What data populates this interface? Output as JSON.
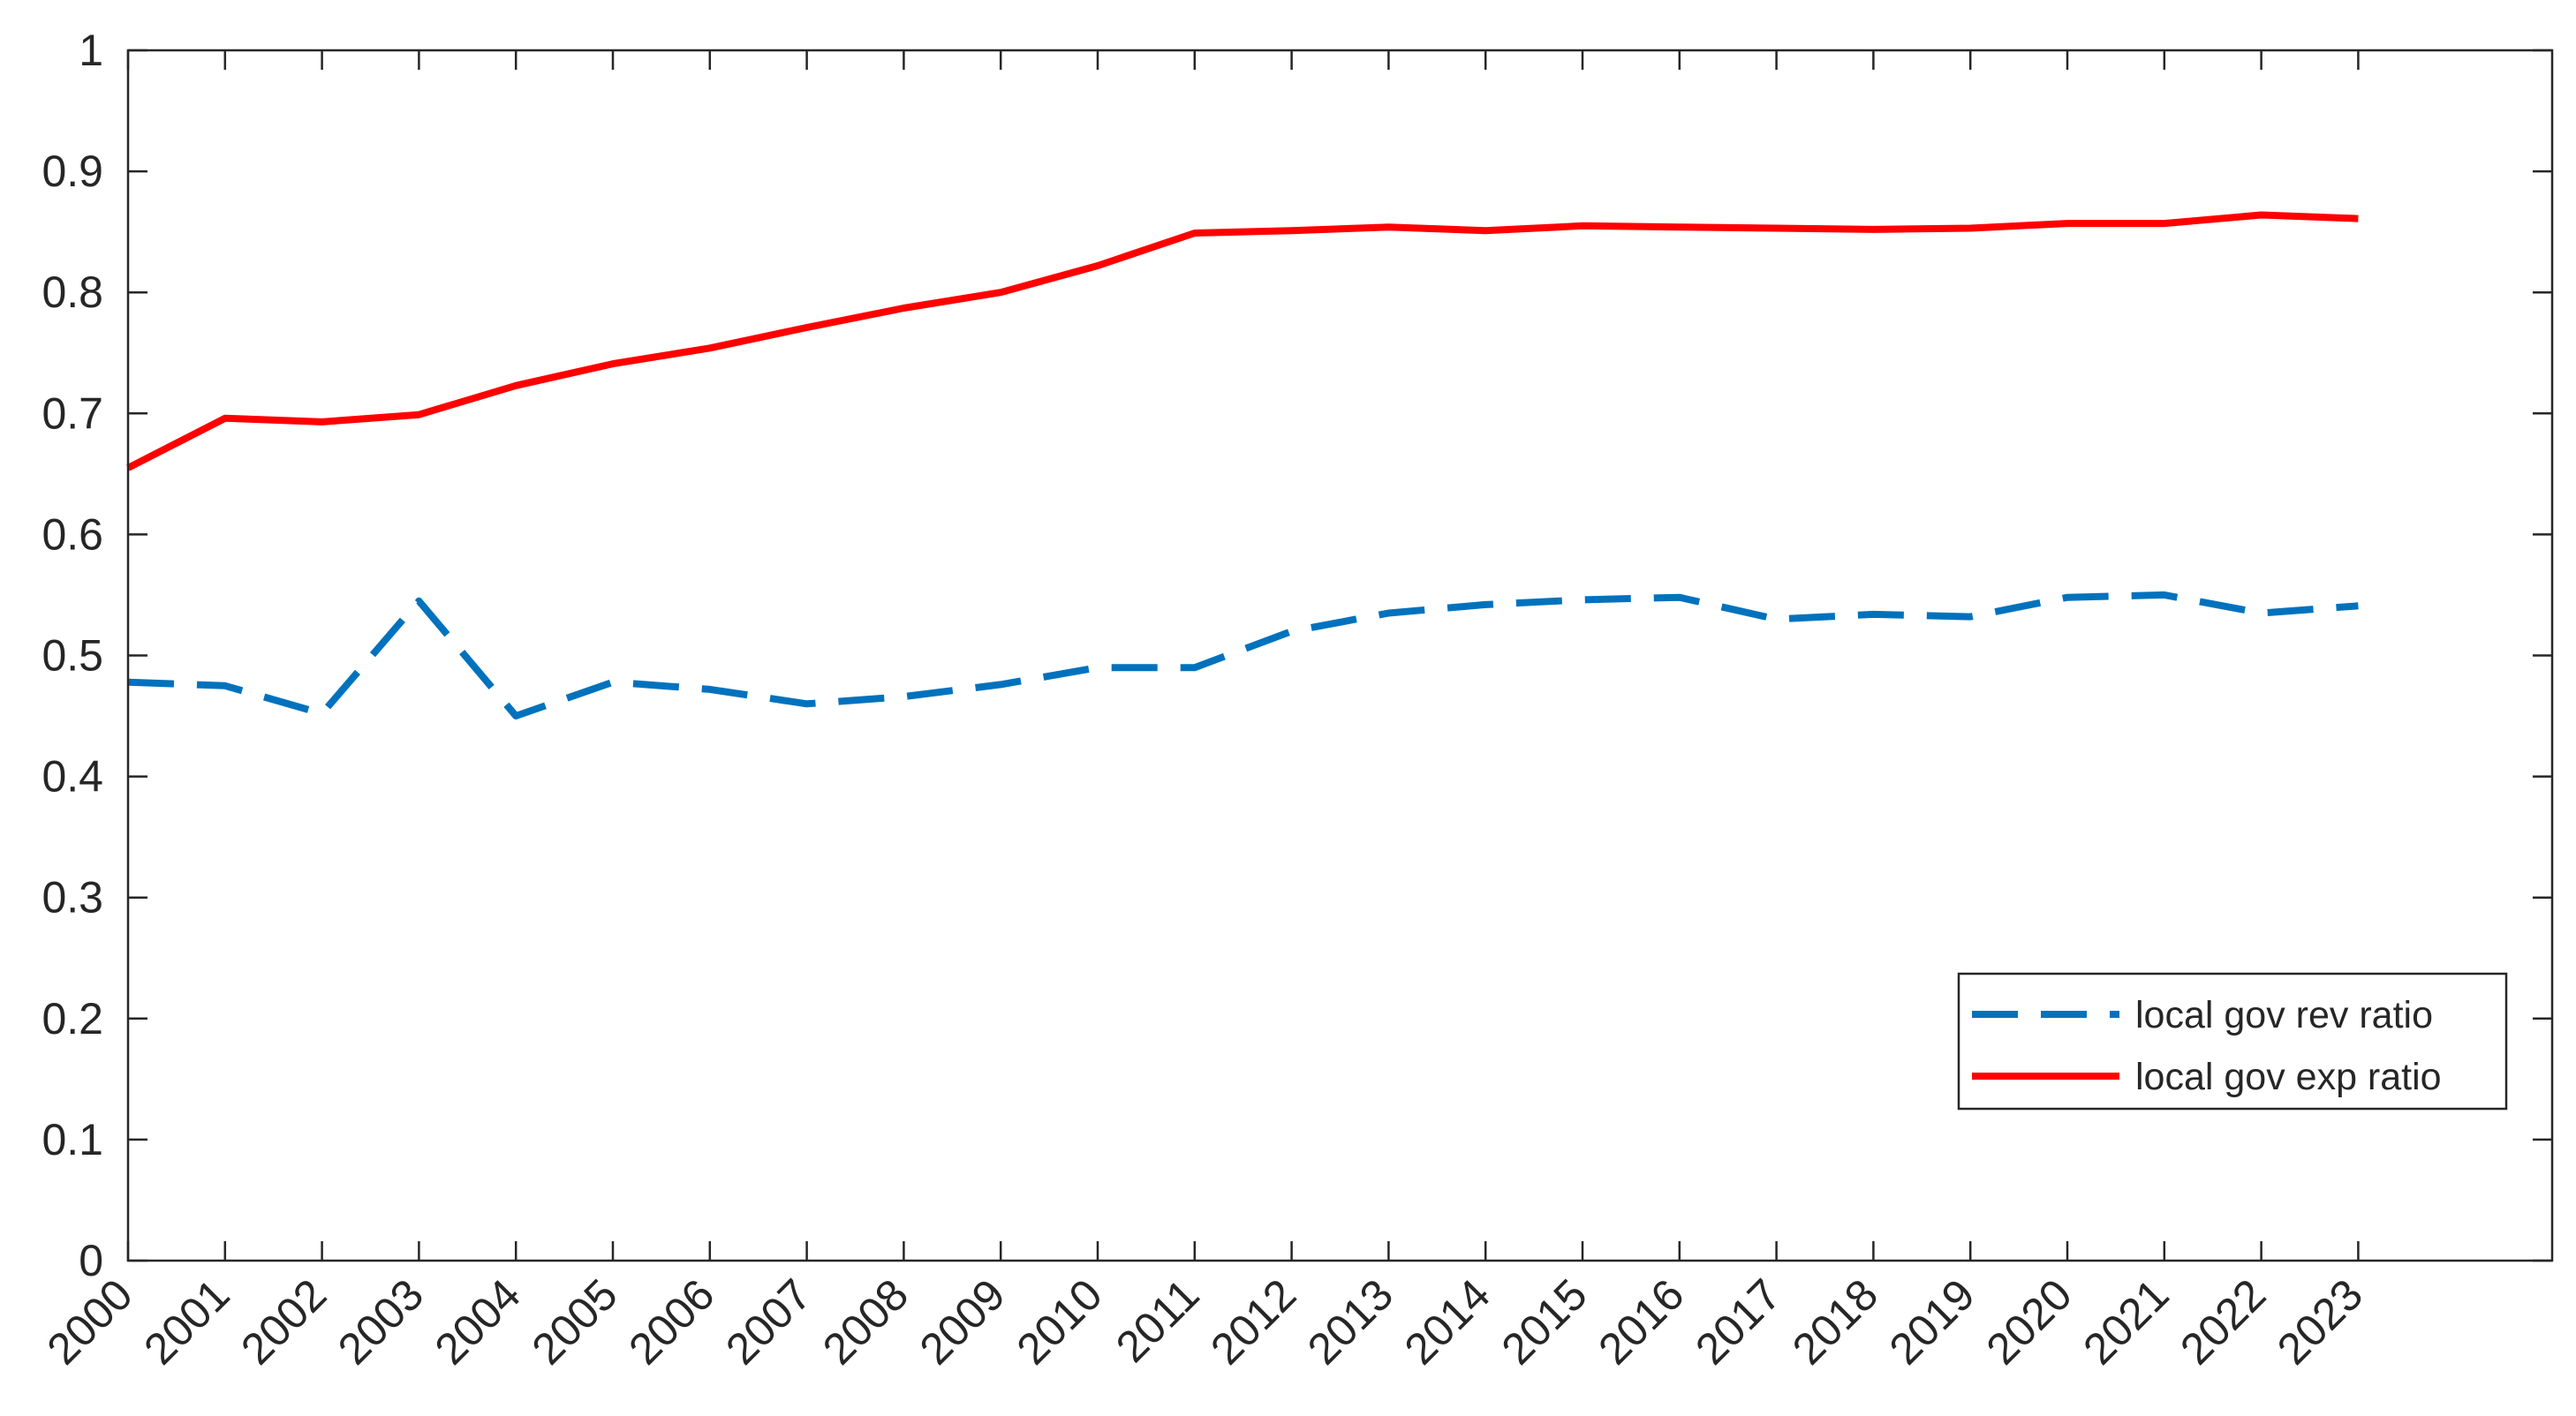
{
  "chart_data": {
    "type": "line",
    "title": "",
    "xlabel": "",
    "ylabel": "",
    "x": [
      "2000",
      "2001",
      "2002",
      "2003",
      "2004",
      "2005",
      "2006",
      "2007",
      "2008",
      "2009",
      "2010",
      "2011",
      "2012",
      "2013",
      "2014",
      "2015",
      "2016",
      "2017",
      "2018",
      "2019",
      "2020",
      "2021",
      "2022",
      "2023"
    ],
    "xlim": [
      2000,
      2025
    ],
    "ylim": [
      0,
      1
    ],
    "yticks": [
      "0",
      "0.1",
      "0.2",
      "0.3",
      "0.4",
      "0.5",
      "0.6",
      "0.7",
      "0.8",
      "0.9",
      "1"
    ],
    "grid": false,
    "legend_position": "lower-right",
    "series": [
      {
        "name": "local gov rev ratio",
        "color": "#0072BD",
        "line_style": "dashed",
        "values": [
          0.478,
          0.475,
          0.452,
          0.545,
          0.45,
          0.478,
          0.472,
          0.46,
          0.466,
          0.476,
          0.49,
          0.49,
          0.52,
          0.535,
          0.542,
          0.546,
          0.548,
          0.53,
          0.534,
          0.532,
          0.548,
          0.55,
          0.535,
          0.541
        ]
      },
      {
        "name": "local gov exp ratio",
        "color": "#FF0000",
        "line_style": "solid",
        "values": [
          0.655,
          0.696,
          0.693,
          0.699,
          0.723,
          0.741,
          0.754,
          0.771,
          0.787,
          0.8,
          0.822,
          0.849,
          0.851,
          0.854,
          0.851,
          0.855,
          0.854,
          0.853,
          0.852,
          0.853,
          0.857,
          0.857,
          0.864,
          0.861
        ]
      }
    ]
  }
}
